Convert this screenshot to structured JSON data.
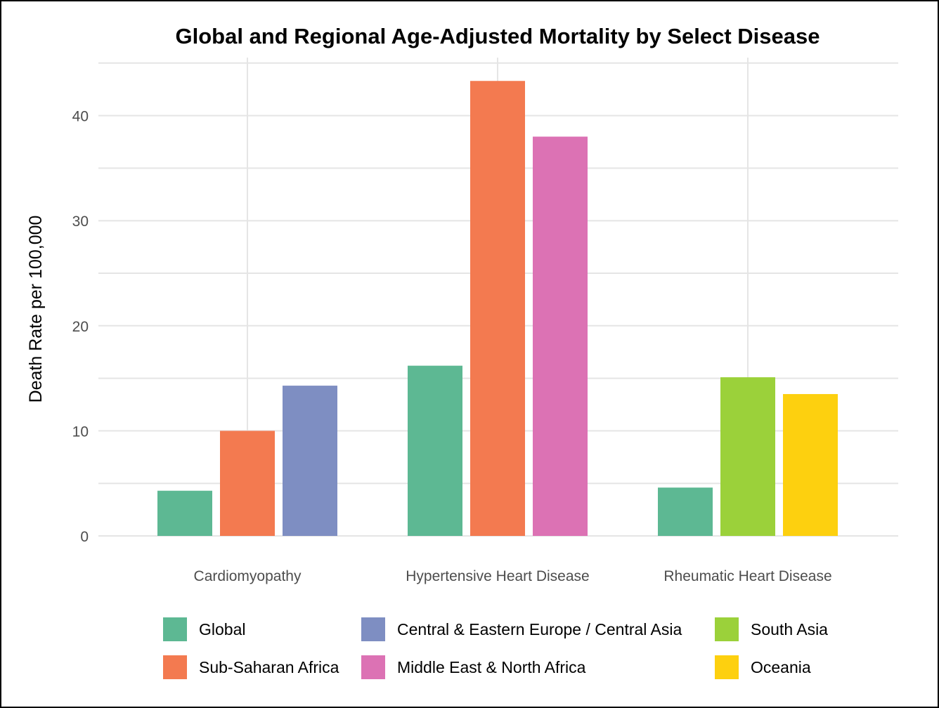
{
  "chart_data": {
    "type": "bar",
    "title": "Global and Regional Age-Adjusted Mortality by Select Disease",
    "xlabel": "",
    "ylabel": "Death Rate per 100,000",
    "ylim": [
      0,
      45
    ],
    "yticks": [
      0,
      10,
      20,
      30,
      40
    ],
    "grid": true,
    "legend_position": "bottom",
    "groups": [
      {
        "category": "Cardiomyopathy",
        "bars": [
          {
            "series": "Global",
            "value": 4.3
          },
          {
            "series": "Sub-Saharan Africa",
            "value": 10.0
          },
          {
            "series": "Central & Eastern Europe / Central Asia",
            "value": 14.3
          }
        ]
      },
      {
        "category": "Hypertensive Heart Disease",
        "bars": [
          {
            "series": "Global",
            "value": 16.2
          },
          {
            "series": "Sub-Saharan Africa",
            "value": 43.3
          },
          {
            "series": "Middle East & North Africa",
            "value": 38.0
          }
        ]
      },
      {
        "category": "Rheumatic Heart Disease",
        "bars": [
          {
            "series": "Global",
            "value": 4.6
          },
          {
            "series": "South Asia",
            "value": 15.1
          },
          {
            "series": "Oceania",
            "value": 13.5
          }
        ]
      }
    ],
    "legend": [
      {
        "name": "Global",
        "color": "#5DB893"
      },
      {
        "name": "Central & Eastern Europe / Central Asia",
        "color": "#7E8EC2"
      },
      {
        "name": "South Asia",
        "color": "#9BD13A"
      },
      {
        "name": "Sub-Saharan Africa",
        "color": "#F37A50"
      },
      {
        "name": "Middle East & North Africa",
        "color": "#DC72B4"
      },
      {
        "name": "Oceania",
        "color": "#FDD00F"
      }
    ]
  }
}
